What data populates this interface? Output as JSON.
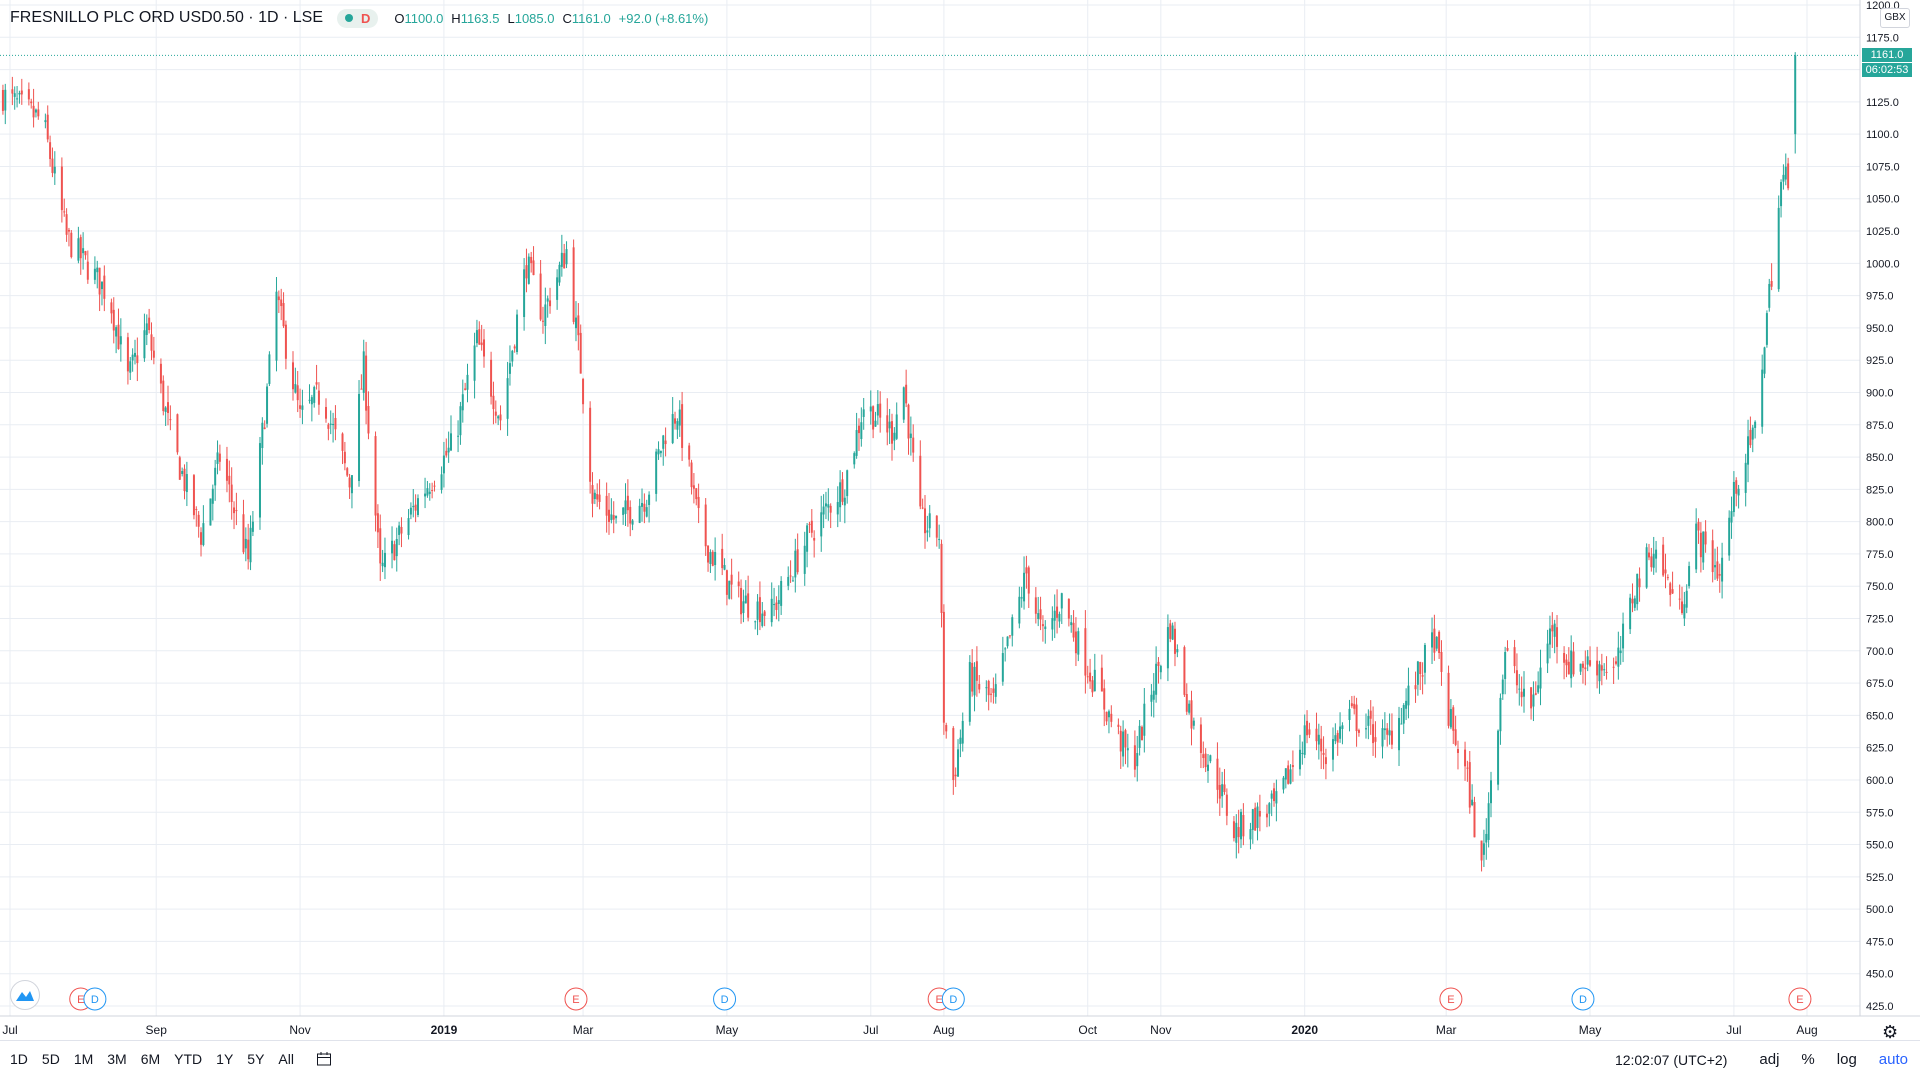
{
  "header": {
    "symbol": "FRESNILLO PLC ORD USD0.50 · 1D · LSE",
    "interval_badge": "D",
    "ohlc": {
      "o_label": "O",
      "o_value": "1100.0",
      "h_label": "H",
      "h_value": "1163.5",
      "l_label": "L",
      "l_value": "1085.0",
      "c_label": "C",
      "c_value": "1161.0",
      "change": "+92.0 (+8.61%)"
    }
  },
  "price_scale": {
    "currency": "GBX",
    "last_price": "1161.0",
    "countdown": "06:02:53"
  },
  "bottom": {
    "ranges": [
      "1D",
      "5D",
      "1M",
      "3M",
      "6M",
      "YTD",
      "1Y",
      "5Y",
      "All"
    ],
    "time": "12:02:07 (UTC+2)",
    "adj": "adj",
    "percent": "%",
    "log": "log",
    "auto": "auto"
  },
  "colors": {
    "up": "#26a69a",
    "down": "#ef5350",
    "grid": "#e9edf3",
    "dividend": "#2196f3"
  },
  "chart_data": {
    "type": "candlestick",
    "title": "FRESNILLO PLC ORD USD0.50 · 1D · LSE",
    "ylim": [
      425,
      1200
    ],
    "y_ticks": [
      1200,
      1175,
      1150,
      1125,
      1100,
      1075,
      1050,
      1025,
      1000,
      975,
      950,
      925,
      900,
      875,
      850,
      825,
      800,
      775,
      750,
      725,
      700,
      675,
      650,
      625,
      600,
      575,
      550,
      525,
      500,
      475,
      450,
      425
    ],
    "x_ticks": [
      {
        "label": "Jul",
        "date": "2018-07-01",
        "bold": false
      },
      {
        "label": "Sep",
        "date": "2018-09-01",
        "bold": false
      },
      {
        "label": "Nov",
        "date": "2018-11-01",
        "bold": false
      },
      {
        "label": "2019",
        "date": "2019-01-01",
        "bold": true
      },
      {
        "label": "Mar",
        "date": "2019-03-01",
        "bold": false
      },
      {
        "label": "May",
        "date": "2019-05-01",
        "bold": false
      },
      {
        "label": "Jul",
        "date": "2019-07-01",
        "bold": false
      },
      {
        "label": "Aug",
        "date": "2019-08-01",
        "bold": false
      },
      {
        "label": "Oct",
        "date": "2019-10-01",
        "bold": false
      },
      {
        "label": "Nov",
        "date": "2019-11-01",
        "bold": false
      },
      {
        "label": "2020",
        "date": "2020-01-01",
        "bold": true
      },
      {
        "label": "Mar",
        "date": "2020-03-01",
        "bold": false
      },
      {
        "label": "May",
        "date": "2020-05-01",
        "bold": false
      },
      {
        "label": "Jul",
        "date": "2020-07-01",
        "bold": false
      },
      {
        "label": "Aug",
        "date": "2020-08-01",
        "bold": false
      }
    ],
    "key_prices": [
      {
        "date": "2018-06-28",
        "close": 1130
      },
      {
        "date": "2018-07-15",
        "close": 1110
      },
      {
        "date": "2018-07-25",
        "close": 1020
      },
      {
        "date": "2018-08-12",
        "close": 975
      },
      {
        "date": "2018-08-20",
        "close": 910
      },
      {
        "date": "2018-08-28",
        "close": 950
      },
      {
        "date": "2018-09-08",
        "close": 860
      },
      {
        "date": "2018-09-20",
        "close": 790
      },
      {
        "date": "2018-09-28",
        "close": 850
      },
      {
        "date": "2018-10-10",
        "close": 770
      },
      {
        "date": "2018-10-18",
        "close": 900
      },
      {
        "date": "2018-10-22",
        "close": 975
      },
      {
        "date": "2018-11-01",
        "close": 880
      },
      {
        "date": "2018-11-10",
        "close": 900
      },
      {
        "date": "2018-11-22",
        "close": 830
      },
      {
        "date": "2018-11-28",
        "close": 920
      },
      {
        "date": "2018-12-05",
        "close": 760
      },
      {
        "date": "2018-12-22",
        "close": 820
      },
      {
        "date": "2019-01-05",
        "close": 860
      },
      {
        "date": "2019-01-15",
        "close": 940
      },
      {
        "date": "2019-01-25",
        "close": 880
      },
      {
        "date": "2019-02-05",
        "close": 1000
      },
      {
        "date": "2019-02-12",
        "close": 960
      },
      {
        "date": "2019-02-22",
        "close": 1010
      },
      {
        "date": "2019-02-28",
        "close": 920
      },
      {
        "date": "2019-03-05",
        "close": 820
      },
      {
        "date": "2019-03-15",
        "close": 800
      },
      {
        "date": "2019-03-28",
        "close": 820
      },
      {
        "date": "2019-04-05",
        "close": 870
      },
      {
        "date": "2019-04-10",
        "close": 885
      },
      {
        "date": "2019-04-20",
        "close": 790
      },
      {
        "date": "2019-05-05",
        "close": 740
      },
      {
        "date": "2019-05-20",
        "close": 730
      },
      {
        "date": "2019-06-05",
        "close": 790
      },
      {
        "date": "2019-06-20",
        "close": 830
      },
      {
        "date": "2019-06-28",
        "close": 890
      },
      {
        "date": "2019-07-10",
        "close": 870
      },
      {
        "date": "2019-07-15",
        "close": 905
      },
      {
        "date": "2019-07-22",
        "close": 800
      },
      {
        "date": "2019-07-30",
        "close": 790
      },
      {
        "date": "2019-08-01",
        "close": 650
      },
      {
        "date": "2019-08-05",
        "close": 600
      },
      {
        "date": "2019-08-12",
        "close": 680
      },
      {
        "date": "2019-08-22",
        "close": 660
      },
      {
        "date": "2019-09-05",
        "close": 760
      },
      {
        "date": "2019-09-12",
        "close": 710
      },
      {
        "date": "2019-09-20",
        "close": 740
      },
      {
        "date": "2019-09-28",
        "close": 700
      },
      {
        "date": "2019-10-10",
        "close": 650
      },
      {
        "date": "2019-10-20",
        "close": 610
      },
      {
        "date": "2019-10-28",
        "close": 670
      },
      {
        "date": "2019-11-05",
        "close": 720
      },
      {
        "date": "2019-11-15",
        "close": 640
      },
      {
        "date": "2019-11-25",
        "close": 600
      },
      {
        "date": "2019-12-02",
        "close": 560
      },
      {
        "date": "2019-12-10",
        "close": 570
      },
      {
        "date": "2019-12-20",
        "close": 580
      },
      {
        "date": "2020-01-02",
        "close": 640
      },
      {
        "date": "2020-01-10",
        "close": 620
      },
      {
        "date": "2020-01-20",
        "close": 650
      },
      {
        "date": "2020-02-05",
        "close": 630
      },
      {
        "date": "2020-02-18",
        "close": 680
      },
      {
        "date": "2020-02-25",
        "close": 710
      },
      {
        "date": "2020-03-02",
        "close": 650
      },
      {
        "date": "2020-03-10",
        "close": 600
      },
      {
        "date": "2020-03-16",
        "close": 530
      },
      {
        "date": "2020-03-20",
        "close": 600
      },
      {
        "date": "2020-03-26",
        "close": 700
      },
      {
        "date": "2020-04-05",
        "close": 650
      },
      {
        "date": "2020-04-15",
        "close": 720
      },
      {
        "date": "2020-04-22",
        "close": 690
      },
      {
        "date": "2020-05-05",
        "close": 690
      },
      {
        "date": "2020-05-12",
        "close": 685
      },
      {
        "date": "2020-05-20",
        "close": 750
      },
      {
        "date": "2020-05-28",
        "close": 780
      },
      {
        "date": "2020-06-08",
        "close": 730
      },
      {
        "date": "2020-06-15",
        "close": 790
      },
      {
        "date": "2020-06-25",
        "close": 760
      },
      {
        "date": "2020-07-02",
        "close": 830
      },
      {
        "date": "2020-07-10",
        "close": 870
      },
      {
        "date": "2020-07-15",
        "close": 960
      },
      {
        "date": "2020-07-21",
        "close": 1060
      },
      {
        "date": "2020-07-24",
        "close": 1069
      },
      {
        "date": "2020-07-27",
        "close": 1161
      }
    ],
    "last_bar": {
      "date": "2020-07-27",
      "open": 1100.0,
      "high": 1163.5,
      "low": 1085.0,
      "close": 1161.0
    },
    "events": [
      {
        "type": "E",
        "date": "2018-07-31"
      },
      {
        "type": "D",
        "date": "2018-08-06"
      },
      {
        "type": "E",
        "date": "2019-02-26"
      },
      {
        "type": "D",
        "date": "2019-04-30"
      },
      {
        "type": "E",
        "date": "2019-07-30"
      },
      {
        "type": "D",
        "date": "2019-08-05"
      },
      {
        "type": "E",
        "date": "2020-03-03"
      },
      {
        "type": "D",
        "date": "2020-04-28"
      },
      {
        "type": "E",
        "date": "2020-07-29"
      }
    ]
  }
}
